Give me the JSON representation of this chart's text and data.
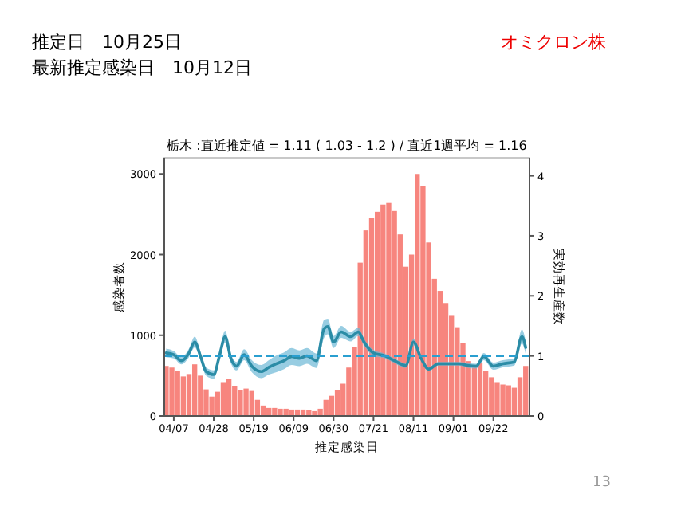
{
  "chart_data": {
    "type": "bar",
    "title": "栃木 :直近推定値 = 1.11 ( 1.03 - 1.2 ) / 直近1週平均 = 1.16",
    "annotations": [
      "推定日　10月25日",
      "最新推定感染日　10月12日",
      "オミクロン株",
      "13"
    ],
    "xlabel": "推定感染日",
    "ylabel": "感染者数",
    "y2label": "実効再生産数",
    "xlim": [
      "--04-02",
      "--10-11"
    ],
    "xticks": [
      {
        "value": "--04-07",
        "label": "04/07"
      },
      {
        "value": "--04-28",
        "label": "04/28"
      },
      {
        "value": "--05-19",
        "label": "05/19"
      },
      {
        "value": "--06-09",
        "label": "06/09"
      },
      {
        "value": "--06-30",
        "label": "06/30"
      },
      {
        "value": "--07-21",
        "label": "07/21"
      },
      {
        "value": "--08-11",
        "label": "08/11"
      },
      {
        "value": "--09-01",
        "label": "09/01"
      },
      {
        "value": "--09-22",
        "label": "09/22"
      }
    ],
    "ylim": [
      0,
      3200
    ],
    "yticks": [
      0,
      1000,
      2000,
      3000
    ],
    "y2lim": [
      0,
      4.3
    ],
    "y2ticks": [
      0,
      1,
      2,
      3,
      4
    ],
    "ref_lines": [
      {
        "axis": "y2",
        "value": 1,
        "color": "#2a9fd0",
        "line_style": "dashed"
      }
    ],
    "series": [
      {
        "color": "#f7857e",
        "x": [
          "--04-03",
          "--04-06",
          "--04-09",
          "--04-12",
          "--04-15",
          "--04-18",
          "--04-21",
          "--04-24",
          "--04-27",
          "--04-30",
          "--05-03",
          "--05-06",
          "--05-09",
          "--05-12",
          "--05-15",
          "--05-18",
          "--05-21",
          "--05-24",
          "--05-27",
          "--05-30",
          "--06-02",
          "--06-05",
          "--06-08",
          "--06-11",
          "--06-14",
          "--06-17",
          "--06-20",
          "--06-23",
          "--06-26",
          "--06-29",
          "--07-02",
          "--07-05",
          "--07-08",
          "--07-11",
          "--07-14",
          "--07-17",
          "--07-20",
          "--07-23",
          "--07-26",
          "--07-29",
          "--08-01",
          "--08-04",
          "--08-07",
          "--08-10",
          "--08-13",
          "--08-16",
          "--08-19",
          "--08-22",
          "--08-25",
          "--08-28",
          "--08-31",
          "--09-03",
          "--09-06",
          "--09-09",
          "--09-12",
          "--09-15",
          "--09-18",
          "--09-21",
          "--09-24",
          "--09-27",
          "--09-30",
          "--10-03",
          "--10-06",
          "--10-09"
        ],
        "values": [
          620,
          600,
          560,
          490,
          520,
          640,
          500,
          330,
          240,
          300,
          420,
          460,
          370,
          320,
          340,
          310,
          200,
          130,
          100,
          100,
          90,
          90,
          80,
          80,
          80,
          70,
          60,
          90,
          200,
          250,
          320,
          400,
          600,
          850,
          1900,
          2300,
          2450,
          2530,
          2620,
          2640,
          2540,
          2250,
          1850,
          2000,
          3000,
          2850,
          2150,
          1700,
          1550,
          1400,
          1250,
          1100,
          900,
          680,
          620,
          660,
          560,
          480,
          420,
          390,
          380,
          350,
          480,
          620
        ]
      },
      {
        "type": "line",
        "axis": "y2",
        "color": "#2b8ca6",
        "x": [
          "--04-03",
          "--04-07",
          "--04-11",
          "--04-15",
          "--04-18",
          "--04-21",
          "--04-24",
          "--04-28",
          "--05-01",
          "--05-04",
          "--05-07",
          "--05-10",
          "--05-14",
          "--05-18",
          "--05-23",
          "--05-27",
          "--05-31",
          "--06-04",
          "--06-08",
          "--06-12",
          "--06-16",
          "--06-21",
          "--06-25",
          "--06-27",
          "--06-30",
          "--07-04",
          "--07-09",
          "--07-13",
          "--07-16",
          "--07-21",
          "--07-27",
          "--08-01",
          "--08-07",
          "--08-11",
          "--08-15",
          "--08-19",
          "--08-24",
          "--08-29",
          "--09-04",
          "--09-09",
          "--09-13",
          "--09-17",
          "--09-22",
          "--09-27",
          "--10-03",
          "--10-07",
          "--10-09"
        ],
        "values": [
          1.05,
          1.02,
          0.92,
          1.05,
          1.23,
          1.0,
          0.74,
          0.69,
          1.0,
          1.32,
          0.96,
          0.83,
          1.02,
          0.83,
          0.74,
          0.81,
          0.87,
          0.92,
          0.99,
          0.96,
          1.0,
          0.92,
          1.45,
          1.49,
          1.23,
          1.4,
          1.32,
          1.4,
          1.23,
          1.05,
          1.0,
          0.92,
          0.84,
          1.23,
          0.96,
          0.78,
          0.87,
          0.87,
          0.87,
          0.84,
          0.83,
          0.99,
          0.83,
          0.87,
          0.9,
          1.32,
          1.14
        ],
        "lower": [
          0.98,
          0.96,
          0.86,
          0.98,
          1.14,
          0.93,
          0.67,
          0.62,
          0.92,
          1.22,
          0.88,
          0.76,
          0.93,
          0.73,
          0.63,
          0.69,
          0.73,
          0.78,
          0.85,
          0.83,
          0.87,
          0.8,
          1.3,
          1.36,
          1.13,
          1.3,
          1.24,
          1.33,
          1.17,
          1.0,
          0.96,
          0.88,
          0.8,
          1.17,
          0.92,
          0.75,
          0.84,
          0.84,
          0.84,
          0.8,
          0.79,
          0.93,
          0.77,
          0.81,
          0.84,
          1.2,
          1.03
        ],
        "upper": [
          1.12,
          1.08,
          0.98,
          1.12,
          1.32,
          1.07,
          0.81,
          0.76,
          1.08,
          1.42,
          1.04,
          0.9,
          1.11,
          0.93,
          0.85,
          0.93,
          1.01,
          1.06,
          1.13,
          1.09,
          1.13,
          1.04,
          1.6,
          1.62,
          1.33,
          1.5,
          1.4,
          1.47,
          1.29,
          1.1,
          1.04,
          0.96,
          0.88,
          1.29,
          1.0,
          0.81,
          0.9,
          0.9,
          0.9,
          0.88,
          0.87,
          1.05,
          0.89,
          0.93,
          0.96,
          1.44,
          1.25
        ]
      }
    ]
  }
}
